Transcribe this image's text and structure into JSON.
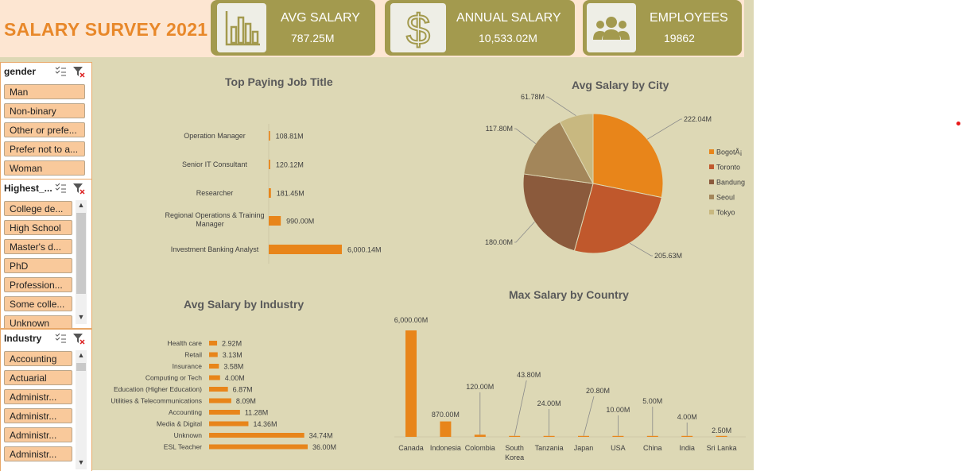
{
  "dashboard": {
    "title": "SALARY SURVEY 2021",
    "kpis": [
      {
        "label": "AVG SALARY",
        "value": "787.25M",
        "icon": "bar-chart-icon"
      },
      {
        "label": "ANNUAL SALARY",
        "value": "10,533.02M",
        "icon": "dollar-icon"
      },
      {
        "label": "EMPLOYEES",
        "value": "19862",
        "icon": "people-icon"
      }
    ]
  },
  "slicers": {
    "gender": {
      "header": "gender",
      "items": [
        "Man",
        "Non-binary",
        "Other or prefe...",
        "Prefer not to a...",
        "Woman"
      ]
    },
    "education": {
      "header": "Highest_...",
      "items": [
        "College de...",
        "High School",
        "Master's d...",
        "PhD",
        "Profession...",
        "Some colle...",
        "Unknown"
      ]
    },
    "industry": {
      "header": "Industry",
      "items": [
        "Accounting",
        "Actuarial",
        "Administr...",
        "Administr...",
        "Administr...",
        "Administr..."
      ]
    }
  },
  "colors": {
    "accent": "#e8851a",
    "kpi": "#a39a4e",
    "background": "#ddd8b5"
  },
  "charts": {
    "top_job": {
      "title": "Top Paying Job Title"
    },
    "city": {
      "title": "Avg Salary by City"
    },
    "industry": {
      "title": "Avg Salary by Industry"
    },
    "country": {
      "title": "Max Salary by Country"
    }
  },
  "chart_data": [
    {
      "type": "bar",
      "title": "Top Paying Job Title",
      "orientation": "horizontal",
      "categories": [
        "Operation Manager",
        "Senior IT Consultant",
        "Researcher",
        "Regional Operations & Training Manager",
        "Investment Banking Analyst"
      ],
      "values": [
        108.81,
        120.12,
        181.45,
        990.0,
        6000.14
      ],
      "data_labels": [
        "108.81M",
        "120.12M",
        "181.45M",
        "990.00M",
        "6,000.14M"
      ],
      "color": "#e8851a"
    },
    {
      "type": "pie",
      "title": "Avg Salary by City",
      "categories": [
        "BogotÃ¡",
        "Toronto",
        "Bandung",
        "Seoul",
        "Tokyo"
      ],
      "values": [
        222.04,
        205.63,
        180.0,
        117.8,
        61.78
      ],
      "data_labels": [
        "222.04M",
        "205.63M",
        "180.00M",
        "117.80M",
        "61.78M"
      ],
      "colors": [
        "#e8851a",
        "#c0582c",
        "#8b5a3c",
        "#a3865a",
        "#c8b880"
      ],
      "legend": "right"
    },
    {
      "type": "bar",
      "title": "Avg Salary by Industry",
      "orientation": "horizontal",
      "categories": [
        "Health care",
        "Retail",
        "Insurance",
        "Computing or Tech",
        "Education (Higher Education)",
        "Utilities & Telecommunications",
        "Accounting",
        "Media & Digital",
        "Unknown",
        "ESL Teacher"
      ],
      "values": [
        2.92,
        3.13,
        3.58,
        4.0,
        6.87,
        8.09,
        11.28,
        14.36,
        34.74,
        36.0
      ],
      "data_labels": [
        "2.92M",
        "3.13M",
        "3.58M",
        "4.00M",
        "6.87M",
        "8.09M",
        "11.28M",
        "14.36M",
        "34.74M",
        "36.00M"
      ],
      "color": "#e8851a"
    },
    {
      "type": "bar",
      "title": "Max Salary by Country",
      "orientation": "vertical",
      "categories": [
        "Canada",
        "Indonesia",
        "Colombia",
        "South Korea",
        "Tanzania",
        "Japan",
        "USA",
        "China",
        "India",
        "Sri Lanka"
      ],
      "values": [
        6000.0,
        870.0,
        120.0,
        43.8,
        24.0,
        20.8,
        10.0,
        5.0,
        4.0,
        2.5
      ],
      "data_labels": [
        "6,000.00M",
        "870.00M",
        "120.00M",
        "43.80M",
        "24.00M",
        "20.80M",
        "10.00M",
        "5.00M",
        "4.00M",
        "2.50M"
      ],
      "color": "#e8851a"
    }
  ]
}
